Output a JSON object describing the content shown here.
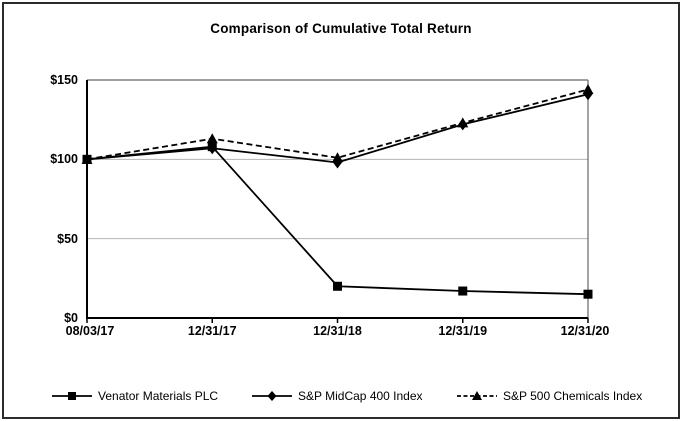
{
  "window": {
    "background": "#ffffff",
    "frame_color": "#2b2b2b"
  },
  "chart_data": {
    "type": "line",
    "title": "Comparison of Cumulative Total Return",
    "x_categories": [
      "08/03/17",
      "12/31/17",
      "12/31/18",
      "12/31/19",
      "12/31/20"
    ],
    "y_ticks": [
      {
        "value": 0,
        "label": "$0"
      },
      {
        "value": 50,
        "label": "$50"
      },
      {
        "value": 100,
        "label": "$100"
      },
      {
        "value": 150,
        "label": "$150"
      }
    ],
    "ylim": [
      0,
      150
    ],
    "grid": "horizontal",
    "legend_position": "bottom",
    "series": [
      {
        "name": "Venator Materials PLC",
        "marker": "square",
        "line": "solid",
        "color": "#000000",
        "values": [
          100,
          108,
          20,
          17,
          15
        ]
      },
      {
        "name": "S&P MidCap 400 Index",
        "marker": "diamond",
        "line": "solid",
        "color": "#000000",
        "values": [
          100,
          107,
          98,
          122,
          141
        ]
      },
      {
        "name": "S&P 500 Chemicals Index",
        "marker": "triangle",
        "line": "dashed",
        "color": "#000000",
        "values": [
          100,
          113,
          101,
          123,
          144
        ]
      }
    ],
    "colors": {
      "grid": "#b3b3b3",
      "axis": "#000000",
      "frame": "#666666"
    }
  }
}
